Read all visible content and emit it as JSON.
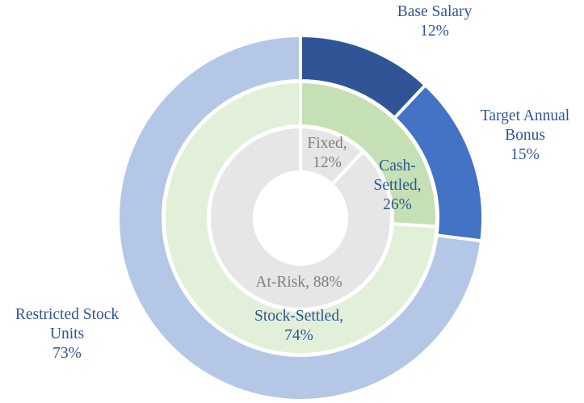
{
  "chart_data": {
    "type": "pie",
    "variant": "nested-donut",
    "rings": [
      {
        "name": "outer",
        "segments": [
          {
            "name": "base-salary",
            "lines": [
              "Base Salary",
              "12%"
            ],
            "value": 12,
            "color": "#2F5597"
          },
          {
            "name": "target-annual-bonus",
            "lines": [
              "Target Annual",
              "Bonus",
              "15%"
            ],
            "value": 15,
            "color": "#4472C4"
          },
          {
            "name": "restricted-stock-units",
            "lines": [
              "Restricted Stock",
              "Units",
              "73%"
            ],
            "value": 73,
            "color": "#B4C7E7"
          }
        ]
      },
      {
        "name": "middle",
        "segments": [
          {
            "name": "cash-settled",
            "lines": [
              "Cash-",
              "Settled,",
              "26%"
            ],
            "value": 26,
            "color": "#C5E0B4"
          },
          {
            "name": "stock-settled",
            "lines": [
              "Stock-Settled,",
              "74%"
            ],
            "value": 74,
            "color": "#E2F0D9"
          }
        ]
      },
      {
        "name": "inner",
        "segments": [
          {
            "name": "fixed",
            "lines": [
              "Fixed,",
              "12%"
            ],
            "value": 12,
            "color": "#E7E6E6"
          },
          {
            "name": "at-risk",
            "lines": [
              "At-Risk, 88%"
            ],
            "value": 88,
            "color": "#E7E6E6"
          }
        ]
      }
    ],
    "start_angle": "12 o'clock",
    "direction": "clockwise"
  }
}
